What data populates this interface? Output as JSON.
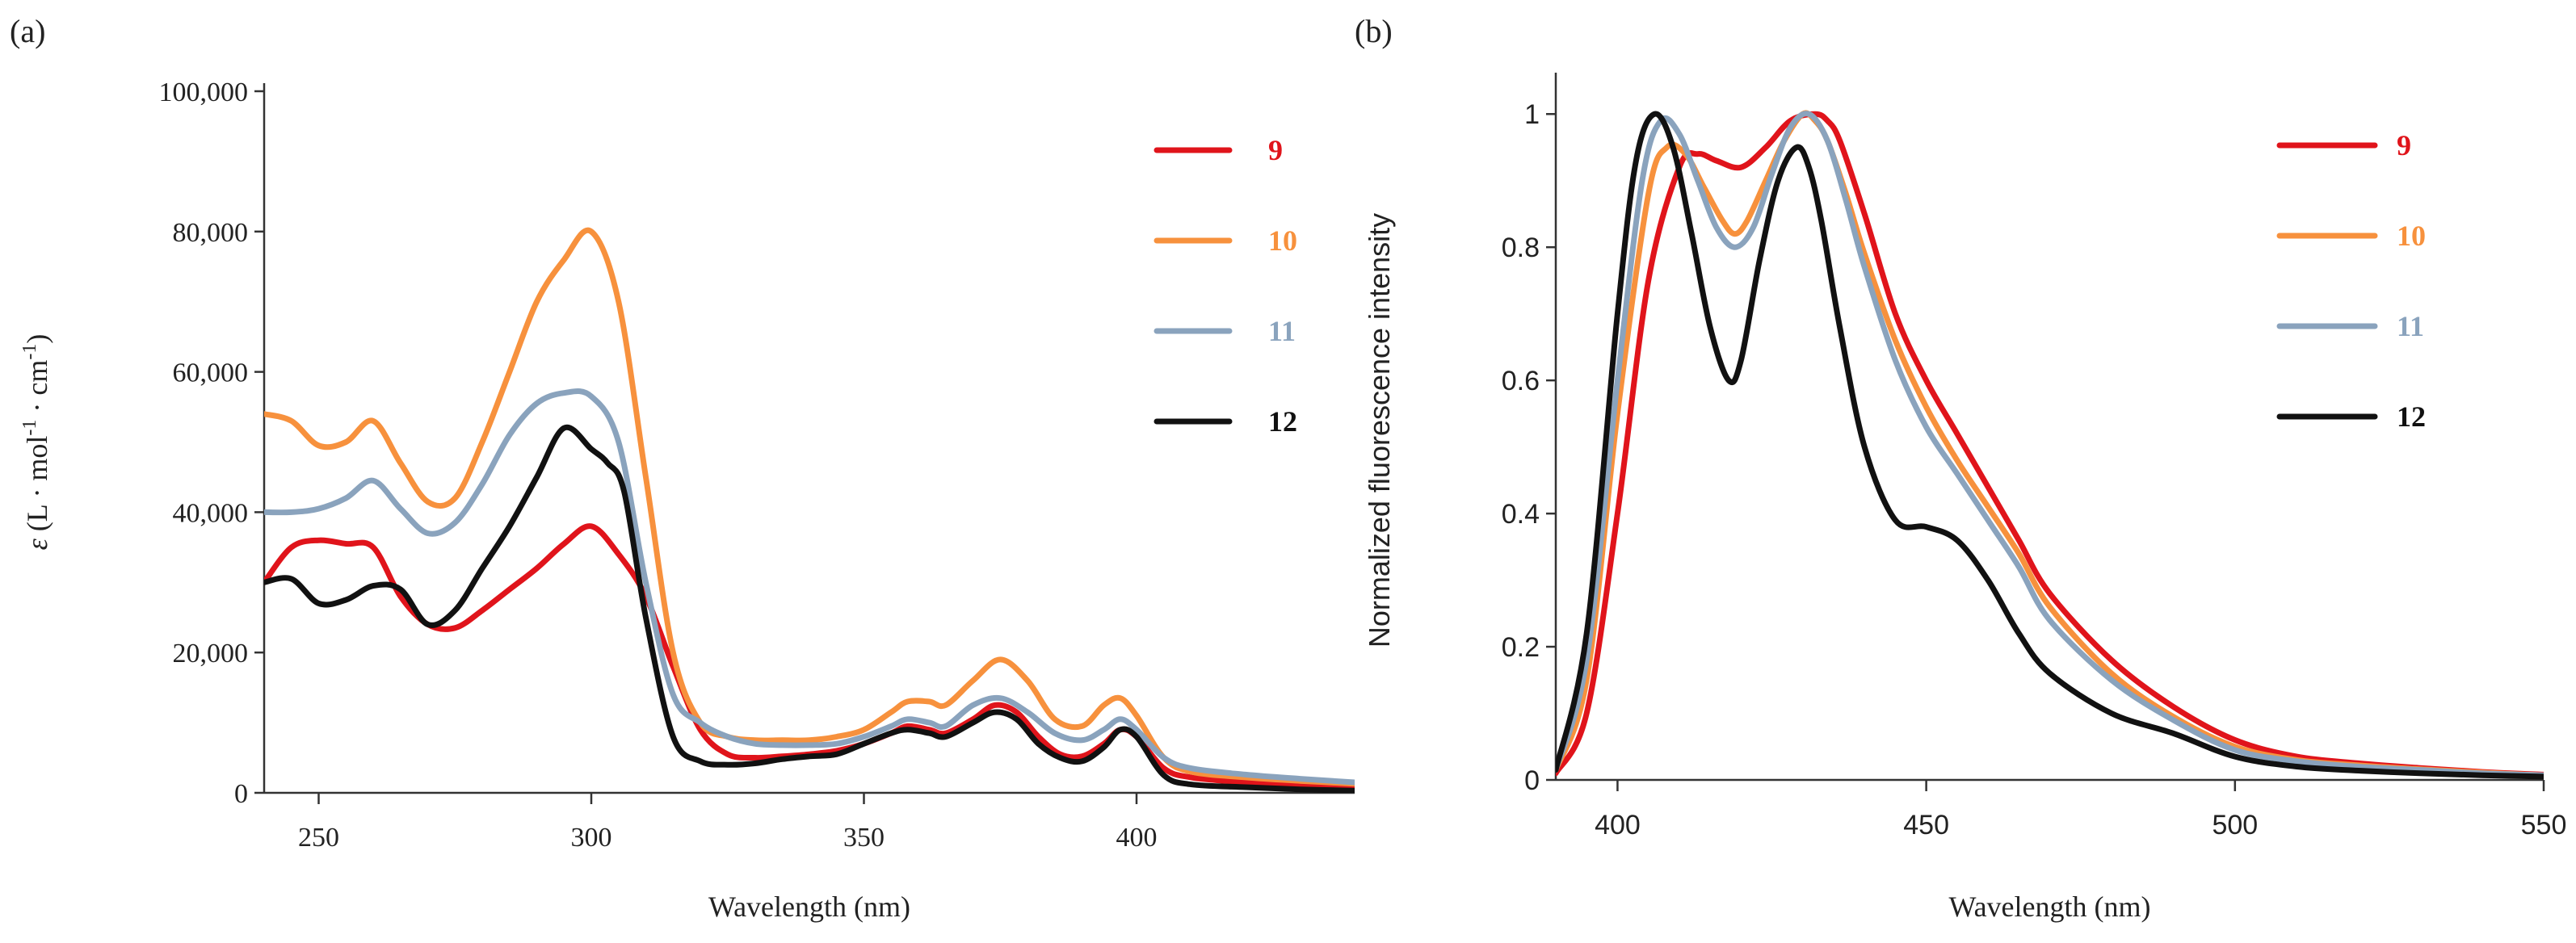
{
  "figure": {
    "panels": [
      "(a)",
      "(b)"
    ]
  },
  "chart_data": [
    {
      "type": "line",
      "panel_label": "(a)",
      "title": "",
      "xlabel": "Wavelength (nm)",
      "ylabel": "ε (L · mol-1 · cm-1)",
      "ylabel_parts": {
        "symbol": "ε",
        "text": " (L · mol",
        "sup1": "-1",
        "mid": " · cm",
        "sup2": "-1",
        "end": ")"
      },
      "xlim": [
        240,
        440
      ],
      "ylim": [
        0,
        100000
      ],
      "xticks": [
        250,
        300,
        350,
        400
      ],
      "xtick_labels": [
        "250",
        "300",
        "350",
        "400"
      ],
      "yticks": [
        0,
        20000,
        40000,
        60000,
        80000,
        100000
      ],
      "ytick_labels": [
        "0",
        "20,000",
        "40,000",
        "60,000",
        "80,000",
        "100,000"
      ],
      "grid": false,
      "legend_position": "top-right",
      "series": [
        {
          "name": "9",
          "color": "#e0141b",
          "x": [
            240,
            245,
            250,
            255,
            260,
            265,
            270,
            275,
            280,
            285,
            290,
            295,
            300,
            305,
            310,
            315,
            320,
            325,
            330,
            335,
            340,
            345,
            350,
            355,
            358,
            362,
            365,
            370,
            374,
            378,
            382,
            386,
            390,
            394,
            397,
            400,
            405,
            410,
            420,
            430,
            440
          ],
          "y": [
            30000,
            35000,
            36000,
            35500,
            35000,
            28000,
            24000,
            23500,
            26000,
            29000,
            32000,
            35500,
            38000,
            34000,
            28000,
            18000,
            9000,
            5500,
            5000,
            5200,
            5500,
            6000,
            7000,
            8500,
            9500,
            9000,
            8500,
            10500,
            12500,
            11500,
            8000,
            5500,
            5200,
            7000,
            9000,
            8000,
            3500,
            2200,
            1500,
            1200,
            1000
          ]
        },
        {
          "name": "10",
          "color": "#f7913d",
          "x": [
            240,
            245,
            250,
            255,
            260,
            265,
            270,
            275,
            280,
            285,
            290,
            295,
            300,
            305,
            310,
            315,
            320,
            325,
            330,
            335,
            340,
            345,
            350,
            355,
            358,
            362,
            365,
            370,
            375,
            380,
            385,
            390,
            394,
            397,
            400,
            405,
            410,
            420,
            430,
            440
          ],
          "y": [
            54000,
            53000,
            49500,
            50000,
            53000,
            47000,
            41500,
            42000,
            50000,
            60000,
            70000,
            76000,
            80000,
            70000,
            45000,
            20000,
            10000,
            8000,
            7500,
            7500,
            7500,
            8000,
            9000,
            11500,
            13000,
            13000,
            12500,
            16000,
            19000,
            16000,
            10500,
            9500,
            12500,
            13500,
            11000,
            5000,
            3000,
            2200,
            1700,
            1300
          ]
        },
        {
          "name": "11",
          "color": "#8aa3bd",
          "x": [
            240,
            245,
            250,
            255,
            260,
            265,
            270,
            275,
            280,
            285,
            290,
            295,
            300,
            305,
            310,
            315,
            320,
            325,
            330,
            335,
            340,
            345,
            350,
            355,
            358,
            362,
            365,
            370,
            375,
            380,
            385,
            390,
            394,
            397,
            400,
            405,
            410,
            420,
            430,
            440
          ],
          "y": [
            40000,
            40000,
            40500,
            42000,
            44500,
            40500,
            37000,
            38500,
            44000,
            51000,
            55500,
            57000,
            56500,
            50000,
            30000,
            14000,
            10000,
            8000,
            7000,
            6800,
            6800,
            7000,
            8000,
            9500,
            10500,
            10000,
            9500,
            12500,
            13500,
            11500,
            8500,
            7500,
            9000,
            10500,
            9000,
            5000,
            3500,
            2600,
            2000,
            1500
          ]
        },
        {
          "name": "12",
          "color": "#111111",
          "x": [
            240,
            245,
            250,
            255,
            260,
            265,
            270,
            275,
            280,
            285,
            290,
            295,
            300,
            303,
            306,
            310,
            315,
            320,
            325,
            330,
            335,
            340,
            345,
            350,
            355,
            358,
            362,
            365,
            370,
            374,
            378,
            382,
            386,
            390,
            394,
            397,
            400,
            405,
            410,
            420,
            430,
            440
          ],
          "y": [
            30000,
            30500,
            27000,
            27500,
            29500,
            29000,
            24000,
            26000,
            32000,
            38000,
            45000,
            52000,
            49000,
            47000,
            43000,
            25000,
            8000,
            4500,
            4000,
            4200,
            4800,
            5200,
            5500,
            7000,
            8500,
            9000,
            8500,
            8000,
            10000,
            11500,
            10500,
            7000,
            5000,
            4500,
            6500,
            9000,
            8000,
            2500,
            1200,
            800,
            500,
            300
          ]
        }
      ]
    },
    {
      "type": "line",
      "panel_label": "(b)",
      "title": "",
      "xlabel": "Wavelength (nm)",
      "ylabel": "Normalized fluorescence intensity",
      "xlim": [
        390,
        550
      ],
      "ylim": [
        0,
        1.05
      ],
      "xticks": [
        400,
        450,
        500,
        550
      ],
      "xtick_labels": [
        "400",
        "450",
        "500",
        "550"
      ],
      "yticks": [
        0,
        0.2,
        0.4,
        0.6,
        0.8,
        1.0
      ],
      "ytick_labels": [
        "0",
        "0.2",
        "0.4",
        "0.6",
        "0.8",
        "1"
      ],
      "grid": false,
      "legend_position": "top-right",
      "series": [
        {
          "name": "9",
          "color": "#e0141b",
          "x": [
            390,
            395,
            400,
            405,
            410,
            413,
            416,
            420,
            424,
            428,
            432,
            434,
            436,
            440,
            445,
            450,
            455,
            460,
            465,
            470,
            480,
            490,
            500,
            510,
            520,
            530,
            540,
            550
          ],
          "y": [
            0.01,
            0.1,
            0.4,
            0.75,
            0.92,
            0.94,
            0.93,
            0.92,
            0.95,
            0.99,
            1.0,
            0.99,
            0.96,
            0.85,
            0.7,
            0.6,
            0.52,
            0.44,
            0.36,
            0.28,
            0.18,
            0.11,
            0.06,
            0.035,
            0.025,
            0.018,
            0.012,
            0.008
          ]
        },
        {
          "name": "10",
          "color": "#f7913d",
          "x": [
            390,
            395,
            400,
            405,
            408,
            411,
            414,
            417,
            419,
            421,
            424,
            427,
            430,
            432,
            434,
            437,
            440,
            445,
            450,
            455,
            460,
            465,
            470,
            480,
            490,
            500,
            510,
            520,
            530,
            540,
            550
          ],
          "y": [
            0.015,
            0.15,
            0.55,
            0.88,
            0.95,
            0.94,
            0.89,
            0.84,
            0.82,
            0.84,
            0.9,
            0.96,
            1.0,
            0.99,
            0.96,
            0.88,
            0.79,
            0.66,
            0.56,
            0.48,
            0.41,
            0.34,
            0.26,
            0.16,
            0.095,
            0.05,
            0.03,
            0.022,
            0.016,
            0.011,
            0.007
          ]
        },
        {
          "name": "11",
          "color": "#8aa3bd",
          "x": [
            390,
            395,
            400,
            404,
            407,
            410,
            413,
            416,
            419,
            422,
            425,
            428,
            431,
            434,
            437,
            440,
            445,
            450,
            455,
            460,
            465,
            470,
            480,
            490,
            500,
            510,
            520,
            530,
            540,
            550
          ],
          "y": [
            0.015,
            0.18,
            0.6,
            0.9,
            0.99,
            0.97,
            0.9,
            0.83,
            0.8,
            0.83,
            0.91,
            0.98,
            1.0,
            0.96,
            0.87,
            0.77,
            0.63,
            0.53,
            0.46,
            0.39,
            0.32,
            0.24,
            0.15,
            0.09,
            0.045,
            0.028,
            0.02,
            0.015,
            0.01,
            0.007
          ]
        },
        {
          "name": "12",
          "color": "#111111",
          "x": [
            390,
            395,
            400,
            403,
            406,
            409,
            412,
            415,
            418,
            420,
            423,
            426,
            429,
            431,
            433,
            436,
            440,
            445,
            450,
            455,
            460,
            465,
            470,
            480,
            490,
            500,
            510,
            520,
            530,
            540,
            550
          ],
          "y": [
            0.015,
            0.22,
            0.7,
            0.93,
            1.0,
            0.95,
            0.82,
            0.68,
            0.6,
            0.63,
            0.78,
            0.9,
            0.95,
            0.92,
            0.84,
            0.68,
            0.5,
            0.39,
            0.38,
            0.36,
            0.3,
            0.22,
            0.16,
            0.1,
            0.07,
            0.035,
            0.02,
            0.014,
            0.01,
            0.007,
            0.005
          ]
        }
      ]
    }
  ]
}
